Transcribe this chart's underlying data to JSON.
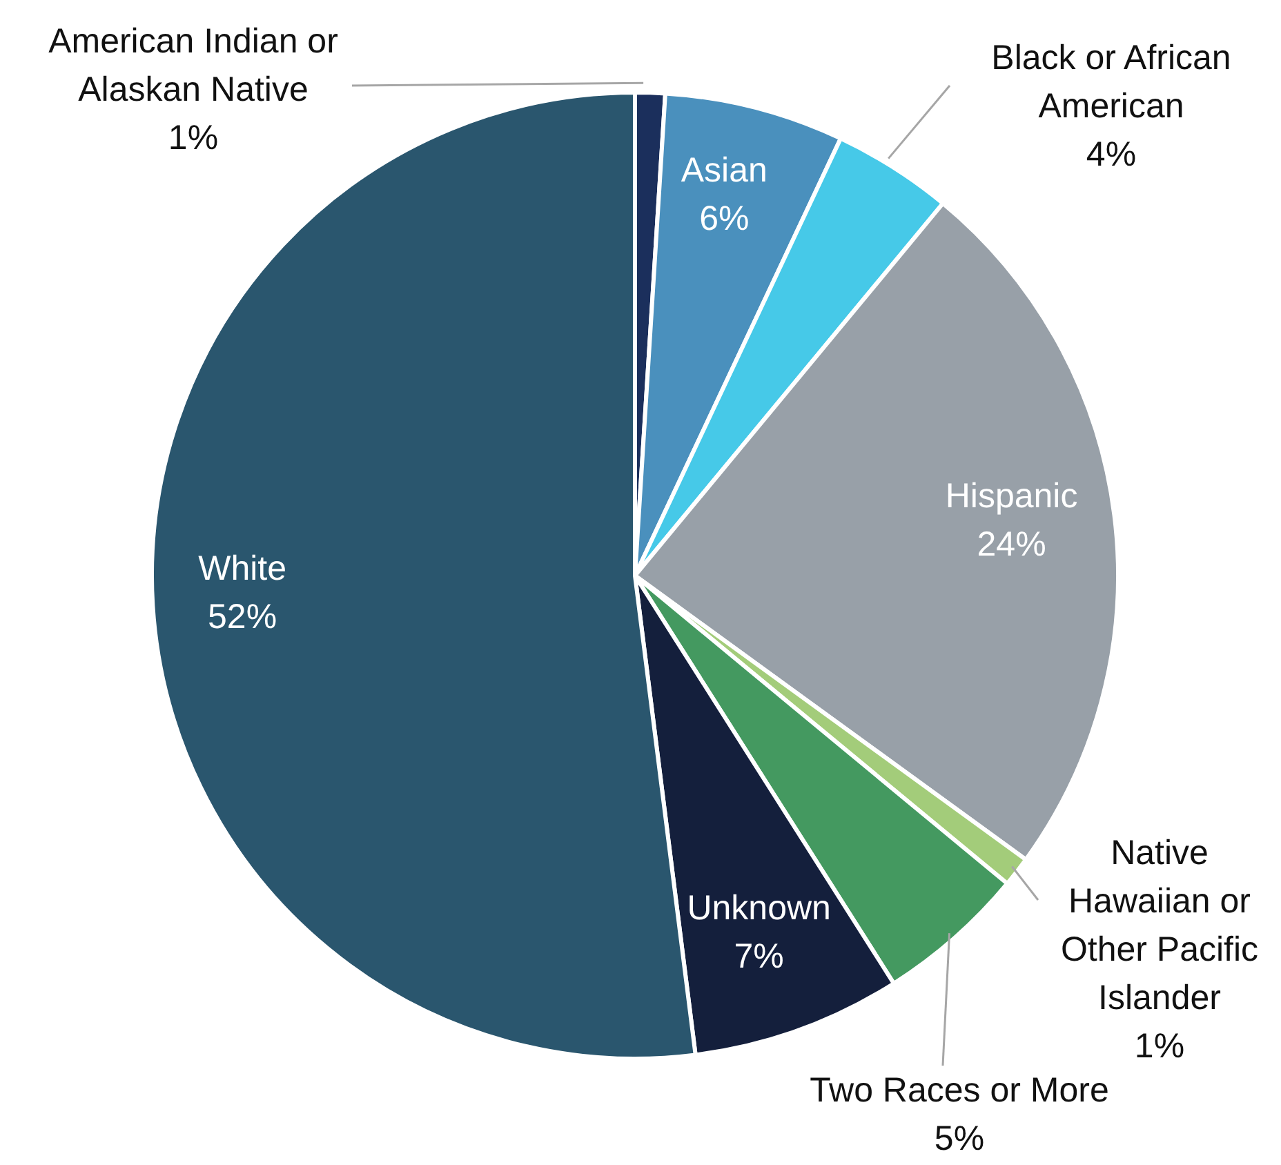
{
  "chart_data": {
    "type": "pie",
    "categories": [
      "American Indian or Alaskan Native",
      "Asian",
      "Black or African American",
      "Hispanic",
      "Native Hawaiian or Other Pacific Islander",
      "Two Races or More",
      "Unknown",
      "White"
    ],
    "values": [
      1,
      6,
      4,
      24,
      1,
      5,
      7,
      52
    ],
    "value_labels": [
      "1%",
      "6%",
      "4%",
      "24%",
      "1%",
      "5%",
      "7%",
      "52%"
    ],
    "colors": [
      "#1b2f5c",
      "#4a90bd",
      "#46c9e8",
      "#98a0a8",
      "#a3cc7a",
      "#449960",
      "#141f3c",
      "#2a566e"
    ]
  }
}
